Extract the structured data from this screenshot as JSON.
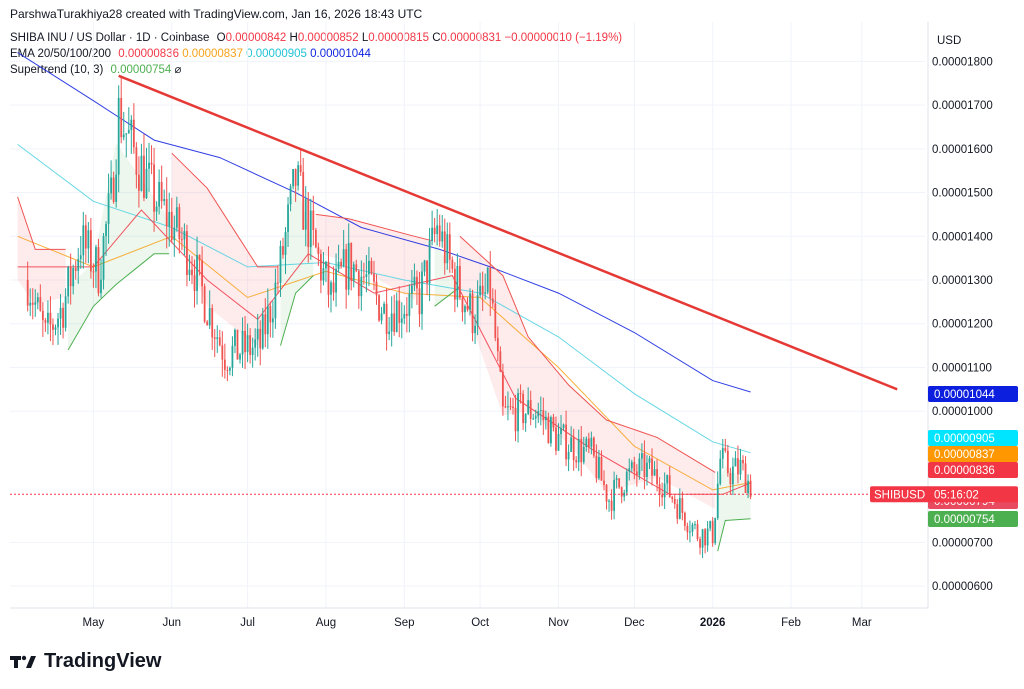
{
  "header": {
    "attribution": "ParshwaTurakhiya28 created with TradingView.com, Jan 16, 2026 18:43 UTC"
  },
  "legend": {
    "symbol_line": "SHIBA INU / US Dollar · 1D · Coinbase",
    "ohlc": {
      "o_label": "O",
      "o": "0.00000842",
      "h_label": "H",
      "h": "0.00000852",
      "l_label": "L",
      "l": "0.00000815",
      "c_label": "C",
      "c": "0.00000831",
      "change": "−0.00000010 (−1.19%)"
    },
    "ema_label": "EMA 20/50/100/200",
    "ema_values": [
      "0.00000836",
      "0.00000837",
      "0.00000905",
      "0.00001044"
    ],
    "supertrend_label": "Supertrend (10, 3)",
    "supertrend_value": "0.00000754",
    "supertrend_icon": "⌀"
  },
  "footer": {
    "brand": "TradingView",
    "logo": "TV"
  },
  "colors": {
    "ema20": "#f23645",
    "ema50": "#f7a21b",
    "ema100": "#4dd0e1",
    "ema200": "#0d1fde",
    "supertrend_up": "#4caf50",
    "trendline": "#e53935",
    "candle_up": "#26a69a",
    "candle_down": "#ef5350"
  },
  "chart_data": {
    "type": "candlestick",
    "title": "SHIBA INU / US Dollar · 1D · Coinbase",
    "currency_label": "USD",
    "y_ticks": [
      "0.00001800",
      "0.00001700",
      "0.00001600",
      "0.00001500",
      "0.00001400",
      "0.00001300",
      "0.00001200",
      "0.00001100",
      "0.00001000",
      "0.00000700",
      "0.00000600"
    ],
    "y_tick_values": [
      1.8e-05,
      1.7e-05,
      1.6e-05,
      1.5e-05,
      1.4e-05,
      1.3e-05,
      1.2e-05,
      1.1e-05,
      1e-05,
      7e-06,
      6e-06
    ],
    "ylim": [
      5.5e-06,
      1.89e-05
    ],
    "x_ticks": [
      "May",
      "Jun",
      "Jul",
      "Aug",
      "Sep",
      "Oct",
      "Nov",
      "Dec",
      "2026",
      "Feb",
      "Mar"
    ],
    "x_tick_dates": [
      "2025-05-01",
      "2025-06-01",
      "2025-07-01",
      "2025-08-01",
      "2025-09-01",
      "2025-10-01",
      "2025-11-01",
      "2025-12-01",
      "2026-01-01",
      "2026-02-01",
      "2026-03-01"
    ],
    "price_tags": [
      {
        "label": "0.00001044",
        "value": 1.044e-05,
        "color": "#0d1fde"
      },
      {
        "label": "0.00000905",
        "value": 9.05e-06,
        "color": "#00e5ff"
      },
      {
        "label": "0.00000837",
        "value": 8.37e-06,
        "color": "#ff9800"
      },
      {
        "label": "0.00000836",
        "value": 8.36e-06,
        "color": "#f23645"
      },
      {
        "label": "0.00000794",
        "value": 7.94e-06,
        "color": "#e84a5f"
      },
      {
        "label": "0.00000754",
        "value": 7.54e-06,
        "color": "#4caf50"
      }
    ],
    "last_price_tag": {
      "symbol": "SHIBUSD",
      "countdown": "05:16:02",
      "value": 8.1e-06
    },
    "trendline": {
      "start": {
        "date": "2025-05-11",
        "value": 1.767e-05
      },
      "end": {
        "date": "2026-03-15",
        "value": 1.05e-05
      }
    },
    "price_path": [
      [
        "2025-04-05",
        1.3e-05
      ],
      [
        "2025-04-12",
        1.17e-05
      ],
      [
        "2025-04-19",
        1.24e-05
      ],
      [
        "2025-04-26",
        1.39e-05
      ],
      [
        "2025-05-03",
        1.32e-05
      ],
      [
        "2025-05-08",
        1.48e-05
      ],
      [
        "2025-05-11",
        1.68e-05
      ],
      [
        "2025-05-18",
        1.58e-05
      ],
      [
        "2025-05-25",
        1.49e-05
      ],
      [
        "2025-06-01",
        1.43e-05
      ],
      [
        "2025-06-08",
        1.36e-05
      ],
      [
        "2025-06-15",
        1.24e-05
      ],
      [
        "2025-06-22",
        1.13e-05
      ],
      [
        "2025-06-29",
        1.14e-05
      ],
      [
        "2025-07-06",
        1.15e-05
      ],
      [
        "2025-07-13",
        1.3e-05
      ],
      [
        "2025-07-20",
        1.53e-05
      ],
      [
        "2025-07-27",
        1.38e-05
      ],
      [
        "2025-08-03",
        1.26e-05
      ],
      [
        "2025-08-10",
        1.34e-05
      ],
      [
        "2025-08-17",
        1.3e-05
      ],
      [
        "2025-08-24",
        1.23e-05
      ],
      [
        "2025-08-31",
        1.24e-05
      ],
      [
        "2025-09-07",
        1.26e-05
      ],
      [
        "2025-09-14",
        1.42e-05
      ],
      [
        "2025-09-21",
        1.3e-05
      ],
      [
        "2025-09-28",
        1.22e-05
      ],
      [
        "2025-10-05",
        1.28e-05
      ],
      [
        "2025-10-10",
        9.9e-06
      ],
      [
        "2025-10-17",
        1e-05
      ],
      [
        "2025-10-24",
        1e-05
      ],
      [
        "2025-10-31",
        9.4e-06
      ],
      [
        "2025-11-07",
        9.2e-06
      ],
      [
        "2025-11-14",
        9e-06
      ],
      [
        "2025-11-21",
        8e-06
      ],
      [
        "2025-11-28",
        8.5e-06
      ],
      [
        "2025-12-05",
        8.7e-06
      ],
      [
        "2025-12-12",
        8.4e-06
      ],
      [
        "2025-12-19",
        7.8e-06
      ],
      [
        "2025-12-26",
        7.2e-06
      ],
      [
        "2026-01-01",
        7.2e-06
      ],
      [
        "2026-01-04",
        8.9e-06
      ],
      [
        "2026-01-08",
        8.6e-06
      ],
      [
        "2026-01-12",
        8.7e-06
      ],
      [
        "2026-01-16",
        8.3e-06
      ]
    ],
    "ema200_path": [
      [
        "2025-04-01",
        1.82e-05
      ],
      [
        "2025-05-01",
        1.71e-05
      ],
      [
        "2025-05-25",
        1.62e-05
      ],
      [
        "2025-06-20",
        1.58e-05
      ],
      [
        "2025-07-20",
        1.5e-05
      ],
      [
        "2025-08-15",
        1.42e-05
      ],
      [
        "2025-09-15",
        1.37e-05
      ],
      [
        "2025-10-05",
        1.33e-05
      ],
      [
        "2025-11-01",
        1.27e-05
      ],
      [
        "2025-12-01",
        1.18e-05
      ],
      [
        "2026-01-01",
        1.07e-05
      ],
      [
        "2026-01-16",
        1.044e-05
      ]
    ],
    "ema100_path": [
      [
        "2025-04-01",
        1.61e-05
      ],
      [
        "2025-05-01",
        1.48e-05
      ],
      [
        "2025-06-01",
        1.42e-05
      ],
      [
        "2025-07-01",
        1.33e-05
      ],
      [
        "2025-08-01",
        1.34e-05
      ],
      [
        "2025-09-01",
        1.3e-05
      ],
      [
        "2025-10-01",
        1.27e-05
      ],
      [
        "2025-11-01",
        1.17e-05
      ],
      [
        "2025-12-01",
        1.04e-05
      ],
      [
        "2026-01-01",
        9.3e-06
      ],
      [
        "2026-01-16",
        9.05e-06
      ]
    ],
    "ema50_path": [
      [
        "2025-04-01",
        1.4e-05
      ],
      [
        "2025-05-01",
        1.33e-05
      ],
      [
        "2025-06-01",
        1.4e-05
      ],
      [
        "2025-07-01",
        1.26e-05
      ],
      [
        "2025-08-01",
        1.32e-05
      ],
      [
        "2025-09-01",
        1.27e-05
      ],
      [
        "2025-10-01",
        1.26e-05
      ],
      [
        "2025-11-01",
        1.1e-05
      ],
      [
        "2025-12-01",
        9.2e-06
      ],
      [
        "2026-01-01",
        8.2e-06
      ],
      [
        "2026-01-16",
        8.37e-06
      ]
    ],
    "ema20_path": [
      [
        "2025-04-01",
        1.33e-05
      ],
      [
        "2025-05-01",
        1.33e-05
      ],
      [
        "2025-05-20",
        1.46e-05
      ],
      [
        "2025-06-15",
        1.3e-05
      ],
      [
        "2025-07-05",
        1.21e-05
      ],
      [
        "2025-07-25",
        1.36e-05
      ],
      [
        "2025-08-20",
        1.27e-05
      ],
      [
        "2025-09-20",
        1.31e-05
      ],
      [
        "2025-10-15",
        1.03e-05
      ],
      [
        "2025-11-15",
        9.1e-06
      ],
      [
        "2025-12-15",
        8.1e-06
      ],
      [
        "2026-01-05",
        8.1e-06
      ],
      [
        "2026-01-16",
        8.36e-06
      ]
    ],
    "supertrend_segments": [
      {
        "trend": "down",
        "points": [
          [
            "2025-04-01",
            1.49e-05
          ],
          [
            "2025-04-08",
            1.37e-05
          ],
          [
            "2025-04-20",
            1.37e-05
          ]
        ]
      },
      {
        "trend": "up",
        "points": [
          [
            "2025-04-21",
            1.14e-05
          ],
          [
            "2025-05-01",
            1.24e-05
          ],
          [
            "2025-05-10",
            1.29e-05
          ],
          [
            "2025-05-25",
            1.36e-05
          ],
          [
            "2025-05-31",
            1.36e-05
          ]
        ]
      },
      {
        "trend": "down",
        "points": [
          [
            "2025-06-01",
            1.59e-05
          ],
          [
            "2025-06-15",
            1.51e-05
          ],
          [
            "2025-07-05",
            1.33e-05
          ],
          [
            "2025-07-13",
            1.33e-05
          ]
        ]
      },
      {
        "trend": "up",
        "points": [
          [
            "2025-07-14",
            1.15e-05
          ],
          [
            "2025-07-20",
            1.27e-05
          ],
          [
            "2025-07-27",
            1.31e-05
          ]
        ]
      },
      {
        "trend": "down",
        "points": [
          [
            "2025-07-28",
            1.45e-05
          ],
          [
            "2025-08-10",
            1.44e-05
          ],
          [
            "2025-09-05",
            1.4e-05
          ],
          [
            "2025-09-12",
            1.39e-05
          ]
        ]
      },
      {
        "trend": "up",
        "points": [
          [
            "2025-09-13",
            1.24e-05
          ],
          [
            "2025-09-22",
            1.28e-05
          ]
        ]
      },
      {
        "trend": "down",
        "points": [
          [
            "2025-09-23",
            1.4e-05
          ],
          [
            "2025-10-10",
            1.31e-05
          ],
          [
            "2025-10-20",
            1.17e-05
          ],
          [
            "2025-11-05",
            1.06e-05
          ],
          [
            "2025-11-20",
            9.8e-06
          ],
          [
            "2025-12-10",
            9.4e-06
          ],
          [
            "2026-01-02",
            8.6e-06
          ]
        ]
      },
      {
        "trend": "up",
        "points": [
          [
            "2026-01-03",
            6.8e-06
          ],
          [
            "2026-01-06",
            7.5e-06
          ],
          [
            "2026-01-16",
            7.54e-06
          ]
        ]
      }
    ]
  }
}
